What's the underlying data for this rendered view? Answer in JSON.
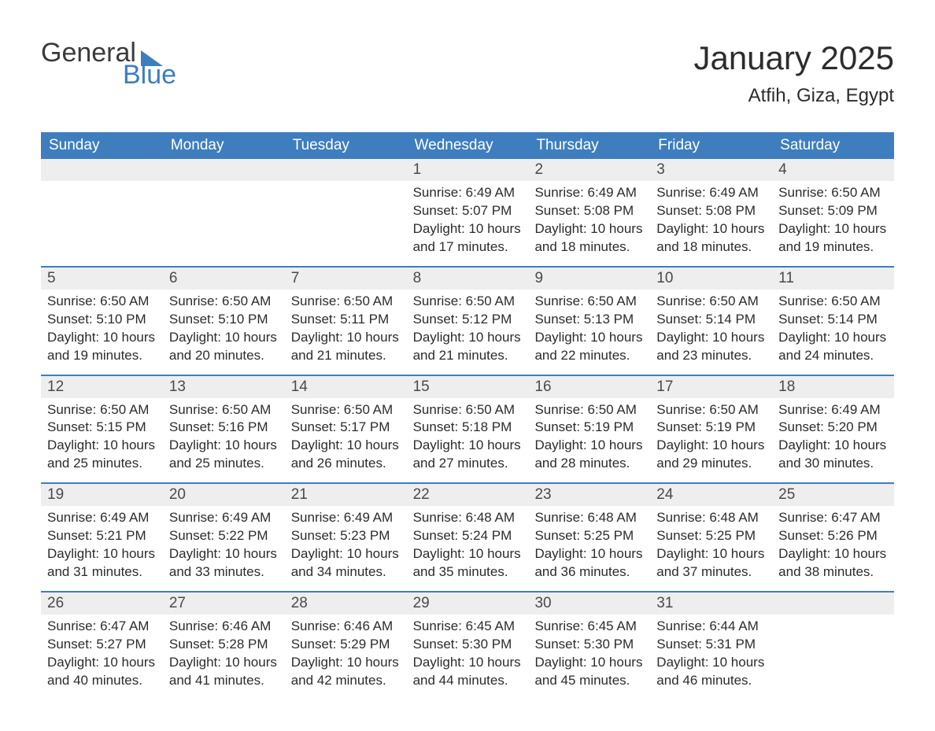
{
  "colors": {
    "header_bg": "#3e7ebf",
    "header_text": "#ffffff",
    "daynum_bg": "#eeeeee",
    "daynum_text": "#4a4a4a",
    "body_text": "#2c2c2c",
    "rule": "#3e7ebf",
    "logo_gray": "#3a3a3a",
    "logo_blue": "#3e7ebf",
    "page_bg": "#ffffff"
  },
  "logo": {
    "word1": "General",
    "word2": "Blue"
  },
  "title": "January 2025",
  "location": "Atfih, Giza, Egypt",
  "dow": [
    "Sunday",
    "Monday",
    "Tuesday",
    "Wednesday",
    "Thursday",
    "Friday",
    "Saturday"
  ],
  "weeks": [
    [
      {
        "n": "",
        "sr": "",
        "ss": "",
        "dl": ""
      },
      {
        "n": "",
        "sr": "",
        "ss": "",
        "dl": ""
      },
      {
        "n": "",
        "sr": "",
        "ss": "",
        "dl": ""
      },
      {
        "n": "1",
        "sr": "Sunrise: 6:49 AM",
        "ss": "Sunset: 5:07 PM",
        "dl": "Daylight: 10 hours and 17 minutes."
      },
      {
        "n": "2",
        "sr": "Sunrise: 6:49 AM",
        "ss": "Sunset: 5:08 PM",
        "dl": "Daylight: 10 hours and 18 minutes."
      },
      {
        "n": "3",
        "sr": "Sunrise: 6:49 AM",
        "ss": "Sunset: 5:08 PM",
        "dl": "Daylight: 10 hours and 18 minutes."
      },
      {
        "n": "4",
        "sr": "Sunrise: 6:50 AM",
        "ss": "Sunset: 5:09 PM",
        "dl": "Daylight: 10 hours and 19 minutes."
      }
    ],
    [
      {
        "n": "5",
        "sr": "Sunrise: 6:50 AM",
        "ss": "Sunset: 5:10 PM",
        "dl": "Daylight: 10 hours and 19 minutes."
      },
      {
        "n": "6",
        "sr": "Sunrise: 6:50 AM",
        "ss": "Sunset: 5:10 PM",
        "dl": "Daylight: 10 hours and 20 minutes."
      },
      {
        "n": "7",
        "sr": "Sunrise: 6:50 AM",
        "ss": "Sunset: 5:11 PM",
        "dl": "Daylight: 10 hours and 21 minutes."
      },
      {
        "n": "8",
        "sr": "Sunrise: 6:50 AM",
        "ss": "Sunset: 5:12 PM",
        "dl": "Daylight: 10 hours and 21 minutes."
      },
      {
        "n": "9",
        "sr": "Sunrise: 6:50 AM",
        "ss": "Sunset: 5:13 PM",
        "dl": "Daylight: 10 hours and 22 minutes."
      },
      {
        "n": "10",
        "sr": "Sunrise: 6:50 AM",
        "ss": "Sunset: 5:14 PM",
        "dl": "Daylight: 10 hours and 23 minutes."
      },
      {
        "n": "11",
        "sr": "Sunrise: 6:50 AM",
        "ss": "Sunset: 5:14 PM",
        "dl": "Daylight: 10 hours and 24 minutes."
      }
    ],
    [
      {
        "n": "12",
        "sr": "Sunrise: 6:50 AM",
        "ss": "Sunset: 5:15 PM",
        "dl": "Daylight: 10 hours and 25 minutes."
      },
      {
        "n": "13",
        "sr": "Sunrise: 6:50 AM",
        "ss": "Sunset: 5:16 PM",
        "dl": "Daylight: 10 hours and 25 minutes."
      },
      {
        "n": "14",
        "sr": "Sunrise: 6:50 AM",
        "ss": "Sunset: 5:17 PM",
        "dl": "Daylight: 10 hours and 26 minutes."
      },
      {
        "n": "15",
        "sr": "Sunrise: 6:50 AM",
        "ss": "Sunset: 5:18 PM",
        "dl": "Daylight: 10 hours and 27 minutes."
      },
      {
        "n": "16",
        "sr": "Sunrise: 6:50 AM",
        "ss": "Sunset: 5:19 PM",
        "dl": "Daylight: 10 hours and 28 minutes."
      },
      {
        "n": "17",
        "sr": "Sunrise: 6:50 AM",
        "ss": "Sunset: 5:19 PM",
        "dl": "Daylight: 10 hours and 29 minutes."
      },
      {
        "n": "18",
        "sr": "Sunrise: 6:49 AM",
        "ss": "Sunset: 5:20 PM",
        "dl": "Daylight: 10 hours and 30 minutes."
      }
    ],
    [
      {
        "n": "19",
        "sr": "Sunrise: 6:49 AM",
        "ss": "Sunset: 5:21 PM",
        "dl": "Daylight: 10 hours and 31 minutes."
      },
      {
        "n": "20",
        "sr": "Sunrise: 6:49 AM",
        "ss": "Sunset: 5:22 PM",
        "dl": "Daylight: 10 hours and 33 minutes."
      },
      {
        "n": "21",
        "sr": "Sunrise: 6:49 AM",
        "ss": "Sunset: 5:23 PM",
        "dl": "Daylight: 10 hours and 34 minutes."
      },
      {
        "n": "22",
        "sr": "Sunrise: 6:48 AM",
        "ss": "Sunset: 5:24 PM",
        "dl": "Daylight: 10 hours and 35 minutes."
      },
      {
        "n": "23",
        "sr": "Sunrise: 6:48 AM",
        "ss": "Sunset: 5:25 PM",
        "dl": "Daylight: 10 hours and 36 minutes."
      },
      {
        "n": "24",
        "sr": "Sunrise: 6:48 AM",
        "ss": "Sunset: 5:25 PM",
        "dl": "Daylight: 10 hours and 37 minutes."
      },
      {
        "n": "25",
        "sr": "Sunrise: 6:47 AM",
        "ss": "Sunset: 5:26 PM",
        "dl": "Daylight: 10 hours and 38 minutes."
      }
    ],
    [
      {
        "n": "26",
        "sr": "Sunrise: 6:47 AM",
        "ss": "Sunset: 5:27 PM",
        "dl": "Daylight: 10 hours and 40 minutes."
      },
      {
        "n": "27",
        "sr": "Sunrise: 6:46 AM",
        "ss": "Sunset: 5:28 PM",
        "dl": "Daylight: 10 hours and 41 minutes."
      },
      {
        "n": "28",
        "sr": "Sunrise: 6:46 AM",
        "ss": "Sunset: 5:29 PM",
        "dl": "Daylight: 10 hours and 42 minutes."
      },
      {
        "n": "29",
        "sr": "Sunrise: 6:45 AM",
        "ss": "Sunset: 5:30 PM",
        "dl": "Daylight: 10 hours and 44 minutes."
      },
      {
        "n": "30",
        "sr": "Sunrise: 6:45 AM",
        "ss": "Sunset: 5:30 PM",
        "dl": "Daylight: 10 hours and 45 minutes."
      },
      {
        "n": "31",
        "sr": "Sunrise: 6:44 AM",
        "ss": "Sunset: 5:31 PM",
        "dl": "Daylight: 10 hours and 46 minutes."
      },
      {
        "n": "",
        "sr": "",
        "ss": "",
        "dl": ""
      }
    ]
  ]
}
